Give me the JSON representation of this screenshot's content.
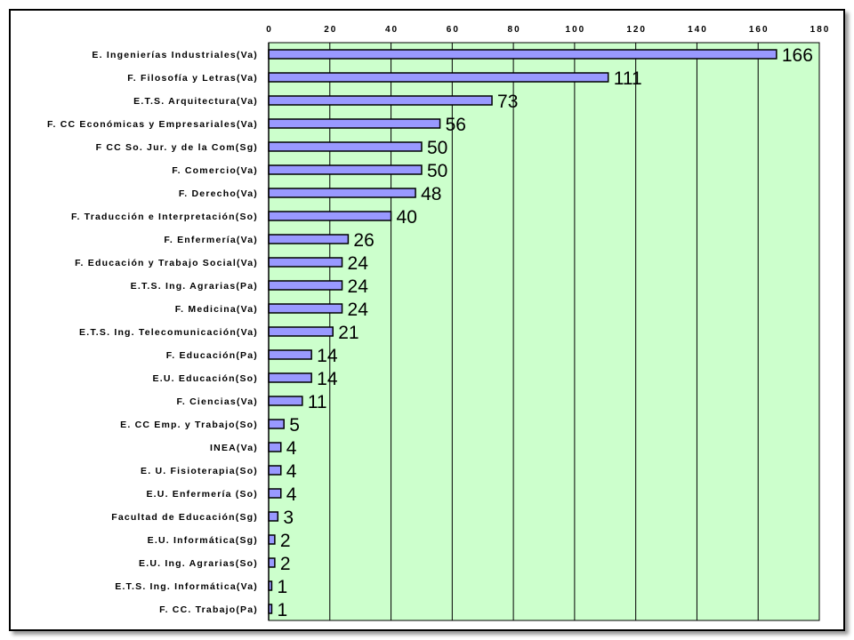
{
  "chart_data": {
    "type": "bar",
    "orientation": "horizontal",
    "title": "",
    "xlabel": "",
    "ylabel": "",
    "xlim": [
      0,
      180
    ],
    "x_ticks": [
      "0",
      "20",
      "40",
      "60",
      "80",
      "100",
      "120",
      "140",
      "160",
      "180"
    ],
    "x_axis_position": "top",
    "grid": true,
    "plot_background": "#ccffcc",
    "bar_color": "#9999ff",
    "categories": [
      "E. Ingenierías Industriales(Va)",
      "F. Filosofía y Letras(Va)",
      "E.T.S. Arquitectura(Va)",
      "F. CC Económicas y Empresariales(Va)",
      "F CC So. Jur. y de la Com(Sg)",
      "F. Comercio(Va)",
      "F. Derecho(Va)",
      "F. Traducción e Interpretación(So)",
      "F. Enfermería(Va)",
      "F. Educación y Trabajo Social(Va)",
      "E.T.S. Ing. Agrarias(Pa)",
      "F. Medicina(Va)",
      "E.T.S. Ing. Telecomunicación(Va)",
      "F. Educación(Pa)",
      "E.U. Educación(So)",
      "F. Ciencias(Va)",
      "E. CC Emp. y Trabajo(So)",
      "INEA(Va)",
      "E. U. Fisioterapia(So)",
      "E.U. Enfermería (So)",
      "Facultad de Educación(Sg)",
      "E.U. Informática(Sg)",
      "E.U. Ing. Agrarias(So)",
      "E.T.S. Ing. Informática(Va)",
      "F. CC. Trabajo(Pa)"
    ],
    "values": [
      166,
      111,
      73,
      56,
      50,
      50,
      48,
      40,
      26,
      24,
      24,
      24,
      21,
      14,
      14,
      11,
      5,
      4,
      4,
      4,
      3,
      2,
      2,
      1,
      1
    ]
  }
}
